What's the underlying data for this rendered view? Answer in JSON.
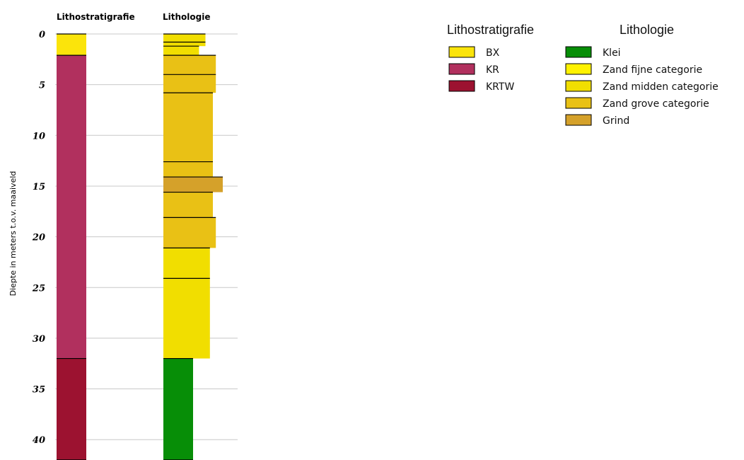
{
  "chart_data": {
    "type": "borehole-log",
    "columns": [
      {
        "key": "strat",
        "title": "Lithostratigrafie"
      },
      {
        "key": "lith",
        "title": "Lithologie"
      }
    ],
    "ylabel": "Diepte in meters t.o.v. maaiveld",
    "yticks": [
      0,
      5,
      10,
      15,
      20,
      25,
      30,
      35,
      40
    ],
    "ylim": [
      0,
      42
    ],
    "grid": true,
    "colors": {
      "BX": "#fbe40b",
      "KR": "#b1305e",
      "KRTW": "#9c1230",
      "Klei": "#078e07",
      "Zand fijne categorie": "#fff200",
      "Zand midden categorie": "#f1de00",
      "Zand grove categorie": "#e9c115",
      "Grind": "#d5a12a"
    },
    "lithostratigrafie": [
      {
        "unit": "BX",
        "top": 0,
        "bottom": 2.1,
        "relwidth": 0.6
      },
      {
        "unit": "KR",
        "top": 2.1,
        "bottom": 32,
        "relwidth": 0.6
      },
      {
        "unit": "KRTW",
        "top": 32,
        "bottom": 42,
        "relwidth": 0.6
      }
    ],
    "lithologie": [
      {
        "unit": "Zand midden categorie",
        "top": 0,
        "bottom": 0.8,
        "relwidth": 0.85
      },
      {
        "unit": "Zand midden categorie",
        "top": 0.8,
        "bottom": 1.2,
        "relwidth": 0.85
      },
      {
        "unit": "Zand midden categorie",
        "top": 1.2,
        "bottom": 2.1,
        "relwidth": 0.72
      },
      {
        "unit": "Zand grove categorie",
        "top": 2.1,
        "bottom": 4,
        "relwidth": 1.06
      },
      {
        "unit": "Zand grove categorie",
        "top": 4,
        "bottom": 5.8,
        "relwidth": 1.06
      },
      {
        "unit": "Zand grove categorie",
        "top": 5.8,
        "bottom": 12.6,
        "relwidth": 1.0
      },
      {
        "unit": "Zand grove categorie",
        "top": 12.6,
        "bottom": 14.1,
        "relwidth": 1.0
      },
      {
        "unit": "Grind",
        "top": 14.1,
        "bottom": 15.6,
        "relwidth": 1.2
      },
      {
        "unit": "Zand grove categorie",
        "top": 15.6,
        "bottom": 18.1,
        "relwidth": 1.0
      },
      {
        "unit": "Zand grove categorie",
        "top": 18.1,
        "bottom": 21.1,
        "relwidth": 1.06
      },
      {
        "unit": "Zand midden categorie",
        "top": 21.1,
        "bottom": 24.1,
        "relwidth": 0.94
      },
      {
        "unit": "Zand midden categorie",
        "top": 24.1,
        "bottom": 32,
        "relwidth": 0.94
      },
      {
        "unit": "Klei",
        "top": 32,
        "bottom": 42,
        "relwidth": 0.6
      }
    ],
    "legend": {
      "lithostratigrafie": {
        "title": "Lithostratigrafie",
        "items": [
          "BX",
          "KR",
          "KRTW"
        ]
      },
      "lithologie": {
        "title": "Lithologie",
        "items": [
          "Klei",
          "Zand fijne categorie",
          "Zand midden categorie",
          "Zand grove categorie",
          "Grind"
        ]
      }
    }
  }
}
